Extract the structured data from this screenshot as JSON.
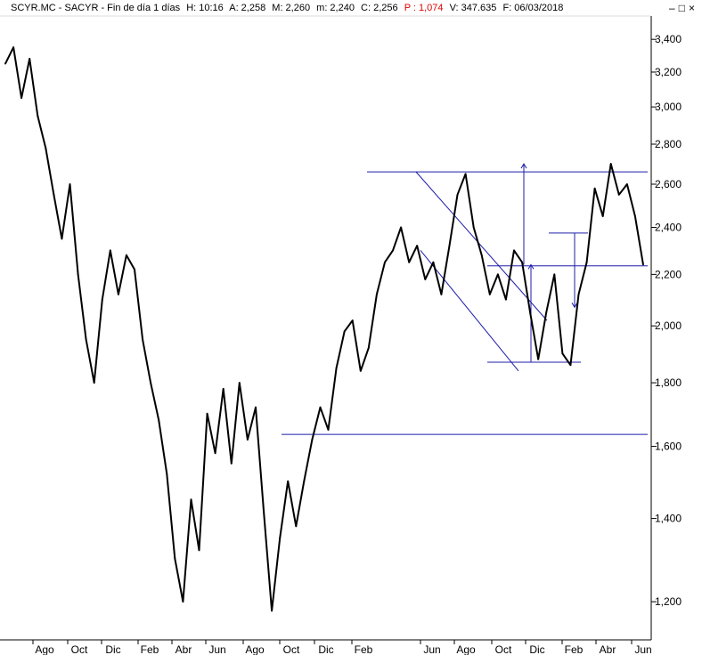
{
  "header": {
    "symbol": "SCYR.MC - SACYR - Fin de día 1 días",
    "high": "H: 10:16",
    "open": "A: 2,258",
    "max": "M: 2,260",
    "min": "m: 2,240",
    "close": "C: 2,256",
    "p": "P : 1,074",
    "volume": "V: 347.635",
    "date": "F: 06/03/2018"
  },
  "window_controls": {
    "minimize": "–",
    "restore": "□",
    "close": "×"
  },
  "colors": {
    "price": "#000000",
    "lines": "#1c1caa",
    "background": "#ffffff",
    "p_text": "#e00000"
  },
  "chart_data": {
    "type": "line",
    "y_scale": "log",
    "ylim": [
      1.12,
      3.55
    ],
    "y_ticks": [
      "3,400",
      "3,200",
      "3,000",
      "2,800",
      "2,600",
      "2,400",
      "2,200",
      "2,000",
      "1,800",
      "1,600",
      "1,400",
      "1,200"
    ],
    "y_tick_values": [
      3.4,
      3.2,
      3.0,
      2.8,
      2.6,
      2.4,
      2.2,
      2.0,
      1.8,
      1.6,
      1.4,
      1.2
    ],
    "x_ticks": [
      "Ago",
      "Oct",
      "Dic",
      "Feb",
      "Abr",
      "Jun",
      "Ago",
      "Oct",
      "Dic",
      "Feb",
      "Jun",
      "Ago",
      "Oct",
      "Dic",
      "Feb",
      "Abr",
      "Jun"
    ],
    "series": [
      {
        "values": [
          3.25,
          3.35,
          3.05,
          3.28,
          2.95,
          2.78,
          2.55,
          2.35,
          2.6,
          2.2,
          1.95,
          1.8,
          2.1,
          2.3,
          2.12,
          2.28,
          2.22,
          1.95,
          1.8,
          1.68,
          1.52,
          1.3,
          1.2,
          1.45,
          1.32,
          1.7,
          1.58,
          1.78,
          1.55,
          1.8,
          1.62,
          1.72,
          1.42,
          1.18,
          1.35,
          1.5,
          1.38,
          1.5,
          1.62,
          1.72,
          1.65,
          1.85,
          1.98,
          2.02,
          1.84,
          1.92,
          2.12,
          2.25,
          2.3,
          2.4,
          2.25,
          2.32,
          2.18,
          2.25,
          2.12,
          2.32,
          2.55,
          2.65,
          2.4,
          2.28,
          2.12,
          2.2,
          2.1,
          2.3,
          2.25,
          2.05,
          1.88,
          2.05,
          2.2,
          1.9,
          1.86,
          2.12,
          2.25,
          2.58,
          2.45,
          2.7,
          2.55,
          2.6,
          2.45,
          2.24
        ]
      }
    ],
    "annotations": [
      {
        "kind": "horizontal",
        "value": 2.66
      },
      {
        "kind": "horizontal",
        "value": 2.235
      },
      {
        "kind": "horizontal",
        "value": 1.87
      },
      {
        "kind": "horizontal",
        "value": 1.636
      },
      {
        "kind": "horizontal",
        "value": 2.375
      },
      {
        "kind": "channel-line",
        "from": 2.66,
        "to": 1.84
      },
      {
        "kind": "channel-line",
        "from": 2.3,
        "to": 2.02
      },
      {
        "kind": "arrow",
        "from": 2.24,
        "to": 2.7
      },
      {
        "kind": "arrow",
        "from": 1.87,
        "to": 2.24
      },
      {
        "kind": "arrow",
        "from": 2.375,
        "to": 2.07
      }
    ]
  }
}
